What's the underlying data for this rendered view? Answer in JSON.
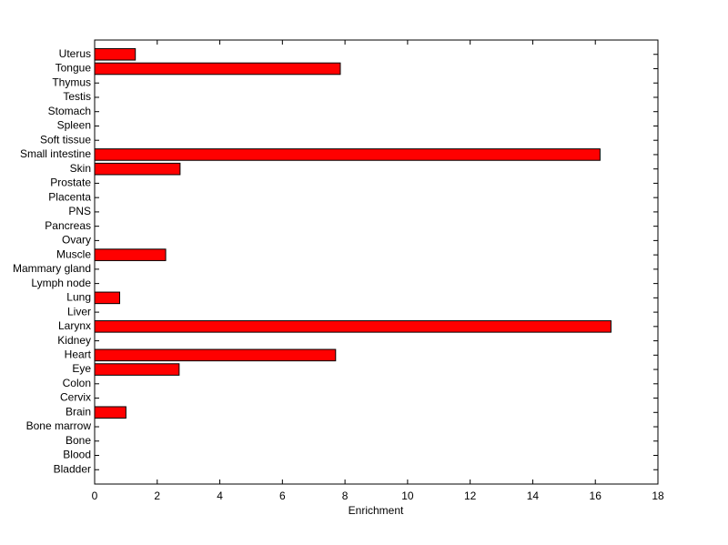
{
  "chart_data": {
    "type": "barh",
    "xlabel": "Enrichment",
    "categories": [
      "Bladder",
      "Blood",
      "Bone",
      "Bone marrow",
      "Brain",
      "Cervix",
      "Colon",
      "Eye",
      "Heart",
      "Kidney",
      "Larynx",
      "Liver",
      "Lung",
      "Lymph node",
      "Mammary gland",
      "Muscle",
      "Ovary",
      "Pancreas",
      "PNS",
      "Placenta",
      "Prostate",
      "Skin",
      "Small intestine",
      "Soft tissue",
      "Spleen",
      "Stomach",
      "Testis",
      "Thymus",
      "Tongue",
      "Uterus"
    ],
    "values": [
      0,
      0,
      0,
      0,
      1.0,
      0,
      0,
      2.7,
      7.7,
      0,
      16.5,
      0,
      0.8,
      0,
      0,
      2.27,
      0,
      0,
      0,
      0,
      0,
      2.73,
      16.15,
      0,
      0,
      0,
      0,
      0,
      7.85,
      1.3
    ],
    "color": "#ff0000",
    "xlim": [
      0,
      18
    ],
    "xticks": [
      0,
      2,
      4,
      6,
      8,
      10,
      12,
      14,
      16,
      18
    ]
  }
}
